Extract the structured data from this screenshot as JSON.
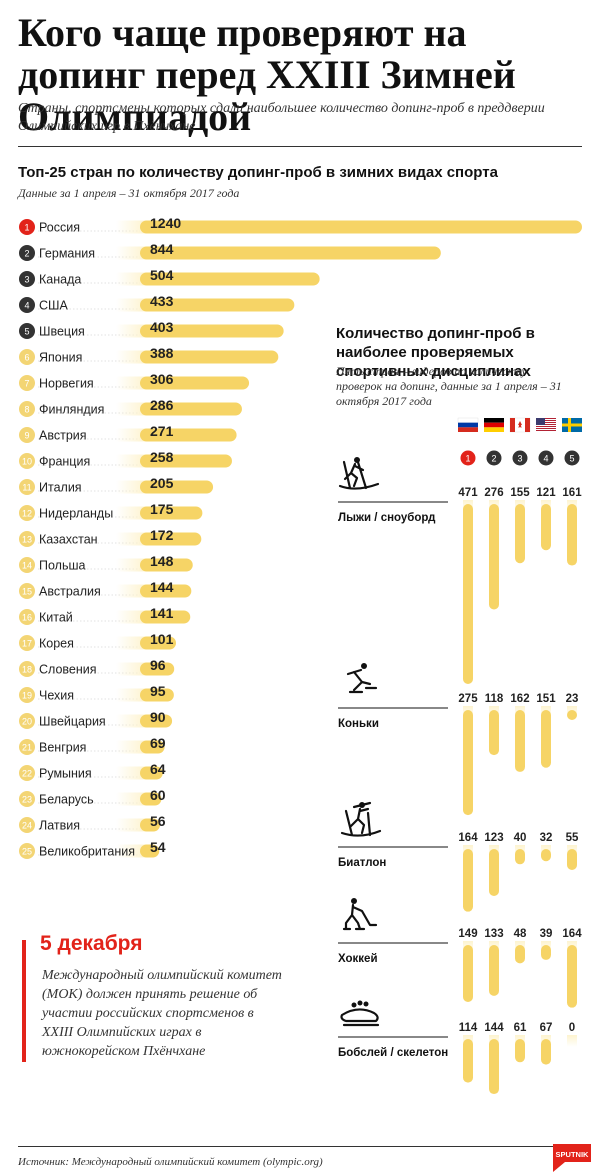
{
  "header": {
    "title": "Кого чаще проверяют на допинг перед XXIII Зимней Олимпиадой",
    "subtitle": "Страны, спортсмены которых сдали наибольшее количество допинг-проб в преддверии Олимпийских игр в Пхёнчхане"
  },
  "colors": {
    "bar": "#f6d466",
    "bar_fade": "#fdf3cf",
    "badge_gold": "#f3d574",
    "badge_dark": "#333333",
    "badge_red": "#e2231a",
    "accent_red": "#e2231a",
    "text": "#222222"
  },
  "chart_data": [
    {
      "type": "bar",
      "orientation": "horizontal",
      "title": "Топ-25 стран по количеству допинг-проб в зимних видах спорта",
      "subtitle": "Данные за 1 апреля – 31 октября 2017 года",
      "ranks": [
        "1",
        "2",
        "3",
        "4",
        "5",
        "6",
        "7",
        "8",
        "9",
        "10",
        "11",
        "12",
        "13",
        "14",
        "15",
        "16",
        "17",
        "18",
        "19",
        "20",
        "21",
        "22",
        "23",
        "24",
        "25"
      ],
      "categories": [
        "Россия",
        "Германия",
        "Канада",
        "США",
        "Швеция",
        "Япония",
        "Норвегия",
        "Финляндия",
        "Австрия",
        "Франция",
        "Италия",
        "Нидерланды",
        "Казахстан",
        "Польша",
        "Австралия",
        "Китай",
        "Корея",
        "Словения",
        "Чехия",
        "Швейцария",
        "Венгрия",
        "Румыния",
        "Беларусь",
        "Латвия",
        "Великобритания"
      ],
      "values": [
        1240,
        844,
        504,
        433,
        403,
        388,
        306,
        286,
        271,
        258,
        205,
        175,
        172,
        148,
        144,
        141,
        101,
        96,
        95,
        90,
        69,
        64,
        60,
        56,
        54
      ],
      "data_labels": [
        "1240",
        "844",
        "504",
        "433",
        "403",
        "388",
        "306",
        "286",
        "271",
        "258",
        "205",
        "175",
        "172",
        "148",
        "144",
        "141",
        "101",
        "96",
        "95",
        "90",
        "69",
        "64",
        "60",
        "56",
        "54"
      ],
      "xlim": [
        0,
        1240
      ]
    },
    {
      "type": "bar",
      "orientation": "vertical",
      "title": "Количество допинг-проб в наиболее проверяемых спортивных дисциплинах",
      "subtitle": "Пять стран – лидеров по количеству проверок на допинг, данные за 1 апреля – 31 октября 2017 года",
      "country_ranks": [
        "1",
        "2",
        "3",
        "4",
        "5"
      ],
      "country_flags": [
        "russia-flag",
        "germany-flag",
        "canada-flag",
        "usa-flag",
        "sweden-flag"
      ],
      "disciplines": [
        {
          "name": "Лыжи / сноуборд",
          "icon": "skier-icon",
          "values": [
            471,
            276,
            155,
            121,
            161
          ],
          "labels": [
            "471",
            "276",
            "155",
            "121",
            "161"
          ]
        },
        {
          "name": "Коньки",
          "icon": "skater-icon",
          "values": [
            275,
            118,
            162,
            151,
            23
          ],
          "labels": [
            "275",
            "118",
            "162",
            "151",
            "23"
          ]
        },
        {
          "name": "Биатлон",
          "icon": "biathlete-icon",
          "values": [
            164,
            123,
            40,
            32,
            55
          ],
          "labels": [
            "164",
            "123",
            "40",
            "32",
            "55"
          ]
        },
        {
          "name": "Хоккей",
          "icon": "hockey-player-icon",
          "values": [
            149,
            133,
            48,
            39,
            164
          ],
          "labels": [
            "149",
            "133",
            "48",
            "39",
            "164"
          ]
        },
        {
          "name": "Бобслей / скелетон",
          "icon": "bobsleigh-icon",
          "values": [
            114,
            144,
            61,
            67,
            0
          ],
          "labels": [
            "114",
            "144",
            "61",
            "67",
            "0"
          ]
        }
      ]
    }
  ],
  "info": {
    "date": "5 декабря",
    "text": "Международный олимпийский комитет (МОК) должен принять решение об участии российских спортсменов в XXIII Олимпийских играх в южнокорейском Пхёнчхане"
  },
  "footer": {
    "source": "Источник: Международный олимпийский комитет (olympic.org)",
    "logo_text": "SPUTNIK"
  }
}
